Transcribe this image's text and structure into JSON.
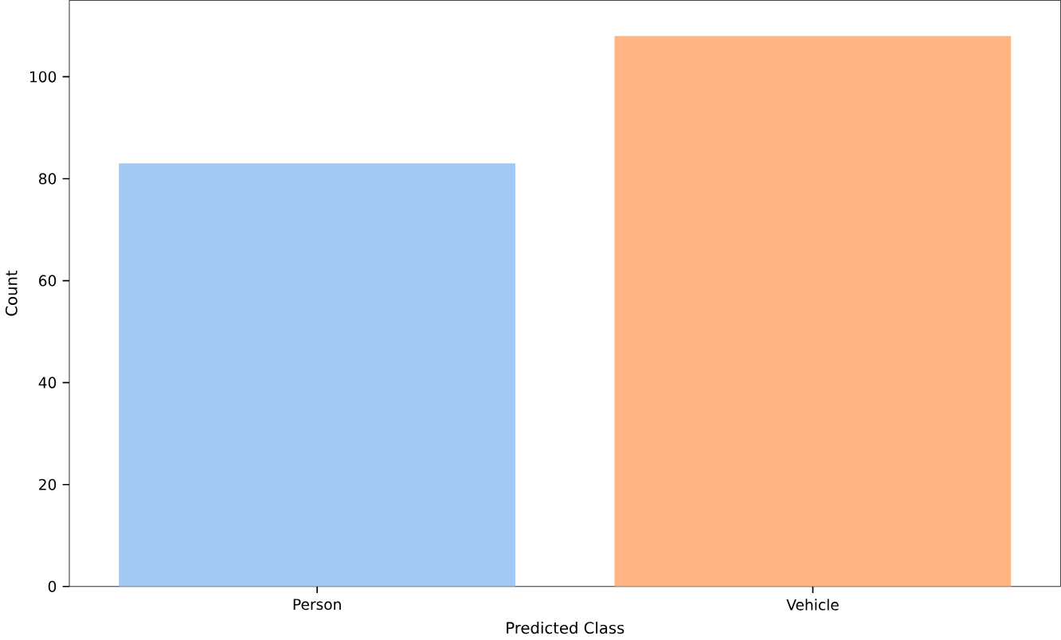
{
  "chart_data": {
    "type": "bar",
    "xlabel": "Predicted Class",
    "ylabel": "Count",
    "categories": [
      "Person",
      "Vehicle"
    ],
    "values": [
      83,
      108
    ],
    "colors": [
      "#a1c9f4",
      "#ffb482"
    ],
    "ylim": [
      0,
      115
    ],
    "yticks": [
      0,
      20,
      40,
      60,
      80,
      100
    ]
  }
}
